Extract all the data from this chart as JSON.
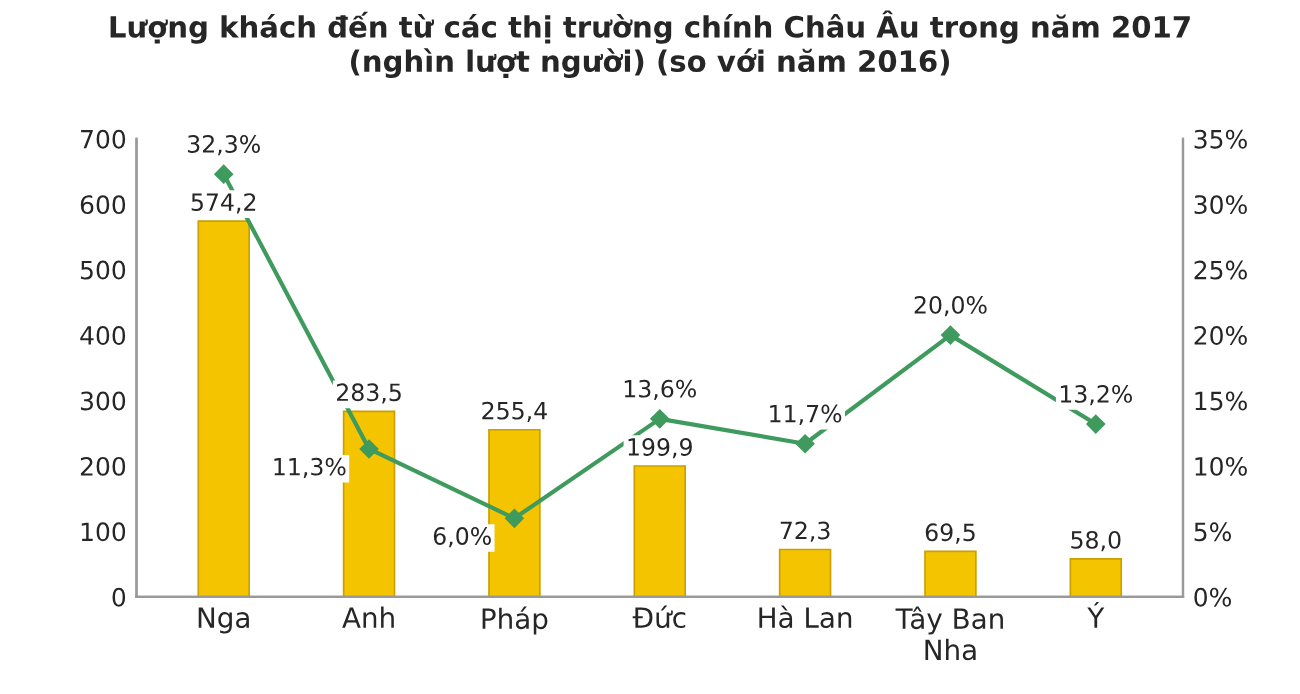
{
  "chart_data": {
    "type": "bar",
    "title": "Lượng khách đến từ các thị trường chính Châu Âu trong năm 2017\n(nghìn lượt người) (so với năm 2016)",
    "categories": [
      "Nga",
      "Anh",
      "Pháp",
      "Đức",
      "Hà Lan",
      "Tây Ban\nNha",
      "Ý"
    ],
    "series": [
      {
        "color": "#f5c400",
        "values": [
          574.2,
          283.5,
          255.4,
          199.9,
          72.3,
          69.5,
          58.0
        ],
        "value_labels": [
          "574,2",
          "283,5",
          "255,4",
          "199,9",
          "72,3",
          "69,5",
          "58,0"
        ]
      },
      {
        "type": "line",
        "axis": "y2",
        "color": "#3f9a5e",
        "marker": "diamond",
        "values": [
          32.3,
          11.3,
          6.0,
          13.6,
          11.7,
          20.0,
          13.2
        ],
        "value_labels": [
          "32,3%",
          "11,3%",
          "6,0%",
          "13,6%",
          "11,7%",
          "20,0%",
          "13,2%"
        ]
      }
    ],
    "ylim": [
      0,
      700
    ],
    "yticks": [
      0,
      100,
      200,
      300,
      400,
      500,
      600,
      700
    ],
    "y2lim": [
      0,
      35
    ],
    "y2ticks": [
      {
        "value": 0,
        "label": "0%"
      },
      {
        "value": 5,
        "label": "5%"
      },
      {
        "value": 10,
        "label": "10%"
      },
      {
        "value": 15,
        "label": "15%"
      },
      {
        "value": 20,
        "label": "20%"
      },
      {
        "value": 25,
        "label": "25%"
      },
      {
        "value": 30,
        "label": "30%"
      },
      {
        "value": 35,
        "label": "35%"
      }
    ],
    "grid": false,
    "legend": false
  }
}
